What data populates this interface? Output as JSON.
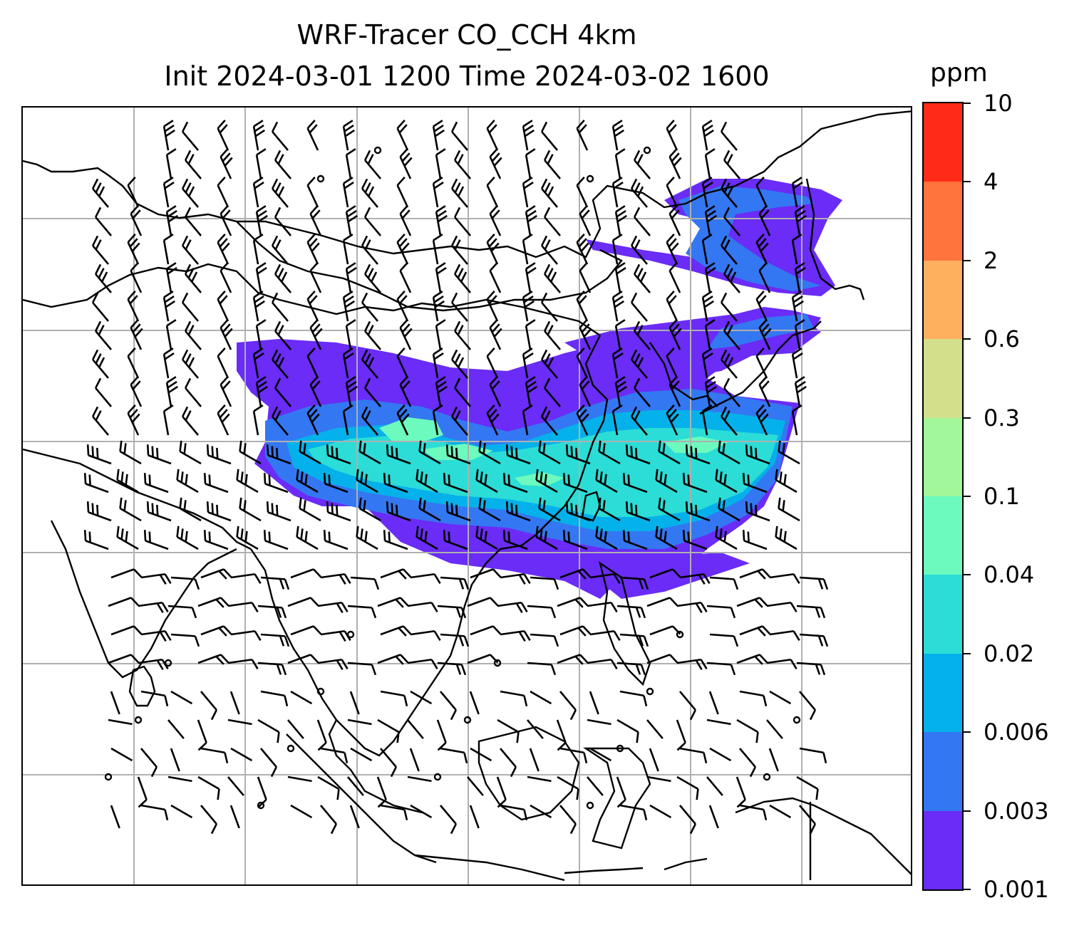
{
  "title": {
    "line1": "WRF-Tracer CO_CCH 4km",
    "line2": "Init 2024-03-01 1200 Time 2024-03-02 1600"
  },
  "colorbar": {
    "unit": "ppm",
    "levels": [
      "0.001",
      "0.003",
      "0.006",
      "0.02",
      "0.04",
      "0.1",
      "0.3",
      "0.6",
      "2",
      "4",
      "10"
    ],
    "colors": [
      "#6a2cf6",
      "#3477f2",
      "#05b1ea",
      "#2bddd6",
      "#6cfabf",
      "#a2f79a",
      "#d3df8a",
      "#ffb05e",
      "#ff733c",
      "#ff2b18"
    ]
  },
  "map": {
    "plume_colors": {
      "outer": "#6a2cf6",
      "mid": "#3477f2",
      "inner": "#05b1ea",
      "core": "#2bddd6",
      "peak": "#6cfabf"
    },
    "gridline_color": "#b0b0b0",
    "coastline_color": "#000000",
    "barb_color": "#000000"
  }
}
